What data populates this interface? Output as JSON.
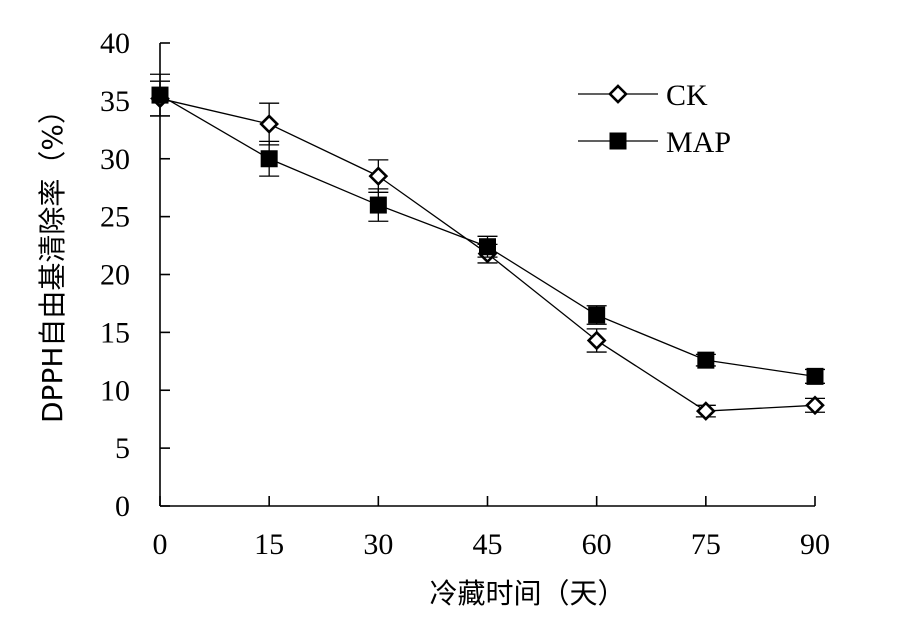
{
  "chart_data": {
    "type": "line",
    "title": "",
    "xlabel": "冷藏时间（天）",
    "ylabel": "DPPH自由基清除率（%）",
    "x": [
      0,
      15,
      30,
      45,
      60,
      75,
      90
    ],
    "xticks": [
      "0",
      "15",
      "30",
      "45",
      "60",
      "75",
      "90"
    ],
    "xlim": [
      0,
      90
    ],
    "ylim": [
      0,
      40
    ],
    "yticks": [
      "0",
      "5",
      "10",
      "15",
      "20",
      "25",
      "30",
      "35",
      "40"
    ],
    "grid": false,
    "legend_position": "top-right",
    "series": [
      {
        "name": "CK",
        "marker": "open-diamond",
        "values": [
          35.2,
          33.0,
          28.5,
          21.8,
          14.3,
          8.2,
          8.7
        ],
        "errors": [
          1.5,
          1.8,
          1.4,
          0.8,
          1.0,
          0.5,
          0.6
        ]
      },
      {
        "name": "MAP",
        "marker": "filled-square",
        "values": [
          35.5,
          30.0,
          26.0,
          22.4,
          16.5,
          12.6,
          11.2
        ],
        "errors": [
          1.8,
          1.5,
          1.4,
          0.9,
          0.8,
          0.5,
          0.6
        ]
      }
    ]
  }
}
